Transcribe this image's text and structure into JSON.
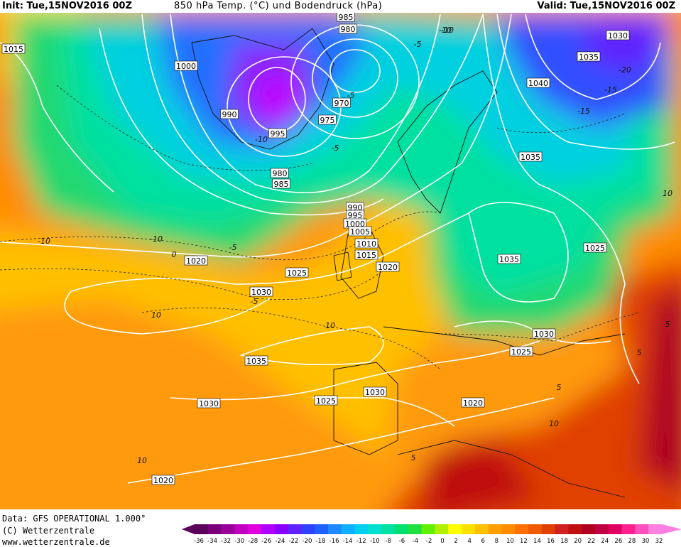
{
  "header": {
    "init": "Init: Tue,15NOV2016 00Z",
    "title": "850 hPa Temp. (°C) und Bodendruck (hPa)",
    "valid": "Valid: Tue,15NOV2016 00Z"
  },
  "footer": {
    "data_line": "Data: GFS OPERATIONAL 1.000°",
    "copyright": "(C) Wetterzentrale",
    "url": "www.wetterzentrale.de"
  },
  "colorbar": {
    "ticks": [
      "-36",
      "-34",
      "-32",
      "-30",
      "-28",
      "-26",
      "-24",
      "-22",
      "-20",
      "-18",
      "-16",
      "-14",
      "-12",
      "-10",
      "-8",
      "-6",
      "-4",
      "-2",
      "0",
      "2",
      "4",
      "6",
      "8",
      "10",
      "12",
      "14",
      "16",
      "18",
      "20",
      "22",
      "24",
      "26",
      "28",
      "30",
      "32"
    ],
    "colors": [
      "#5a005a",
      "#780078",
      "#9a009a",
      "#c000c0",
      "#e000e0",
      "#b000ff",
      "#8a00ff",
      "#6020ff",
      "#3040ff",
      "#2060ff",
      "#1e88ff",
      "#10b0ff",
      "#00d0f0",
      "#00e0d0",
      "#00e0a0",
      "#00e070",
      "#20e040",
      "#60f000",
      "#b0f000",
      "#ffff00",
      "#ffe000",
      "#ffc000",
      "#ffa000",
      "#ff8c00",
      "#ff7000",
      "#f05a00",
      "#e04000",
      "#d02020",
      "#c01010",
      "#b00020",
      "#c00040",
      "#e00060",
      "#ff2090",
      "#ff50c0",
      "#ff80e0"
    ]
  },
  "map": {
    "isobar_labels": [
      "985",
      "980",
      "1015",
      "1000",
      "1030",
      "1035",
      "970",
      "975",
      "990",
      "995",
      "1040",
      "980",
      "985",
      "990",
      "1035",
      "995",
      "1000",
      "1005",
      "1010",
      "1015",
      "1020",
      "1025",
      "1035",
      "1020",
      "1025",
      "1030",
      "1030",
      "1025",
      "1035",
      "1030",
      "1025",
      "1030",
      "1020",
      "1020"
    ],
    "temp_labels": [
      "-10",
      "-5",
      "-15",
      "-20",
      "-10",
      "-5",
      "-5",
      "-10",
      "-10",
      "0",
      "-5",
      "-5",
      "5",
      "10",
      "10",
      "5",
      "10",
      "10",
      "-10",
      "-15",
      "5",
      "5",
      "10"
    ]
  }
}
